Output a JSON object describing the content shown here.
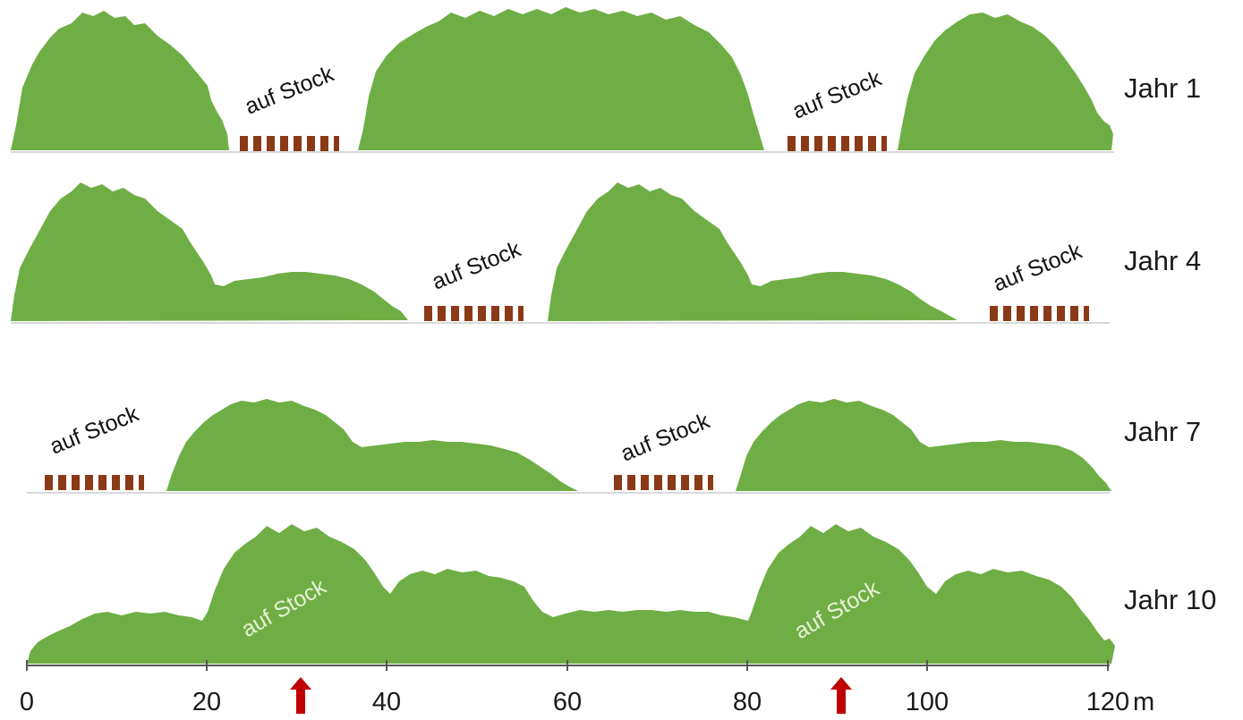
{
  "stock_label": "auf Stock",
  "rows": [
    {
      "year": "Jahr 1"
    },
    {
      "year": "Jahr 4"
    },
    {
      "year": "Jahr 7"
    },
    {
      "year": "Jahr 10"
    }
  ],
  "axis": {
    "ticks": [
      "0",
      "20",
      "40",
      "60",
      "80",
      "100",
      "120"
    ],
    "unit": "m"
  },
  "colors": {
    "hedge": "#6fae45",
    "stumps": "#8b3a17",
    "arrow": "#c00000"
  }
}
